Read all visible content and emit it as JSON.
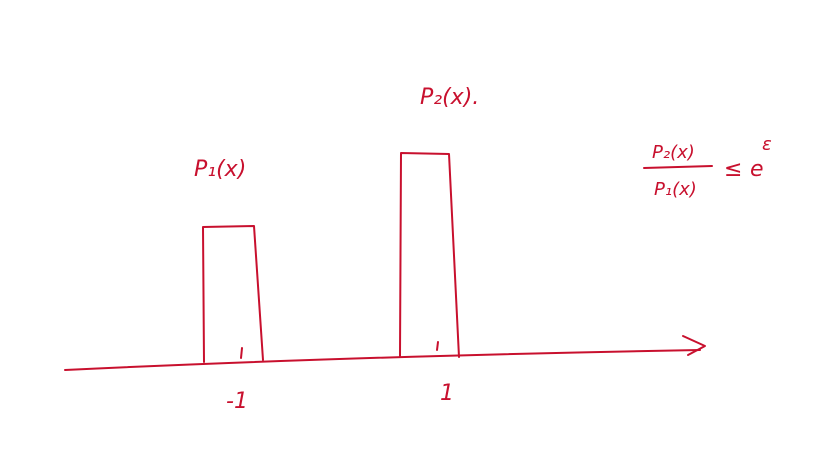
{
  "colors": {
    "ink": "#c8102e",
    "background": "#ffffff"
  },
  "labels": {
    "p1": "P₁(x)",
    "p2": "P₂(x).",
    "tick_neg": "-1",
    "tick_pos": "1"
  },
  "inequality": {
    "numerator": "P₂(x)",
    "denominator": "P₁(x)",
    "relation": "≤",
    "base": "e",
    "exponent": "ε"
  }
}
